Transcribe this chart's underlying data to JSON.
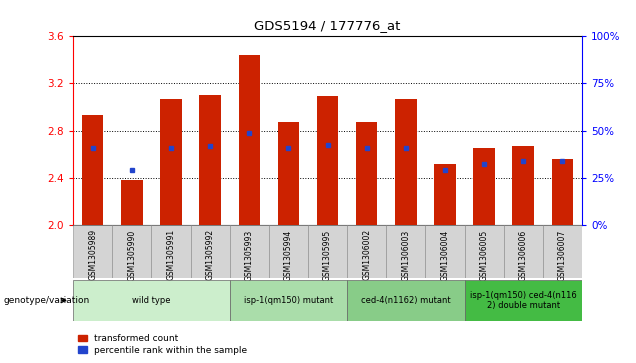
{
  "title": "GDS5194 / 177776_at",
  "samples": [
    "GSM1305989",
    "GSM1305990",
    "GSM1305991",
    "GSM1305992",
    "GSM1305993",
    "GSM1305994",
    "GSM1305995",
    "GSM1306002",
    "GSM1306003",
    "GSM1306004",
    "GSM1306005",
    "GSM1306006",
    "GSM1306007"
  ],
  "red_bar_top": [
    2.93,
    2.38,
    3.07,
    3.1,
    3.44,
    2.87,
    3.09,
    2.87,
    3.07,
    2.52,
    2.65,
    2.67,
    2.56
  ],
  "blue_dot_y": [
    2.65,
    2.47,
    2.65,
    2.67,
    2.78,
    2.65,
    2.68,
    2.65,
    2.65,
    2.47,
    2.52,
    2.54,
    2.54
  ],
  "ymin": 2.0,
  "ymax": 3.6,
  "left_yticks": [
    2.0,
    2.4,
    2.8,
    3.2,
    3.6
  ],
  "right_ytick_labels": [
    "0%",
    "25%",
    "50%",
    "75%",
    "100%"
  ],
  "bar_color": "#cc2200",
  "dot_color": "#2244cc",
  "bar_width": 0.55,
  "groups": [
    {
      "label": "wild type",
      "start": 0,
      "end": 3,
      "color": "#cceecc"
    },
    {
      "label": "isp-1(qm150) mutant",
      "start": 4,
      "end": 6,
      "color": "#aaddaa"
    },
    {
      "label": "ced-4(n1162) mutant",
      "start": 7,
      "end": 9,
      "color": "#88cc88"
    },
    {
      "label": "isp-1(qm150) ced-4(n116\n2) double mutant",
      "start": 10,
      "end": 12,
      "color": "#44bb44"
    }
  ],
  "legend_red": "transformed count",
  "legend_blue": "percentile rank within the sample",
  "genotype_label": "genotype/variation",
  "fig_width": 6.36,
  "fig_height": 3.63
}
